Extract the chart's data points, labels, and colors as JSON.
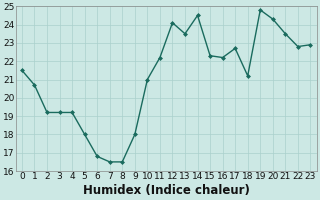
{
  "x": [
    0,
    1,
    2,
    3,
    4,
    5,
    6,
    7,
    8,
    9,
    10,
    11,
    12,
    13,
    14,
    15,
    16,
    17,
    18,
    19,
    20,
    21,
    22,
    23
  ],
  "y": [
    21.5,
    20.7,
    19.2,
    19.2,
    19.2,
    18.0,
    16.8,
    16.5,
    16.5,
    18.0,
    21.0,
    22.2,
    24.1,
    23.5,
    24.5,
    22.3,
    22.2,
    22.7,
    21.2,
    24.8,
    24.3,
    23.5,
    22.8,
    22.9
  ],
  "xlabel": "Humidex (Indice chaleur)",
  "ylim": [
    16,
    25
  ],
  "xlim": [
    -0.5,
    23.5
  ],
  "yticks": [
    16,
    17,
    18,
    19,
    20,
    21,
    22,
    23,
    24,
    25
  ],
  "xticks": [
    0,
    1,
    2,
    3,
    4,
    5,
    6,
    7,
    8,
    9,
    10,
    11,
    12,
    13,
    14,
    15,
    16,
    17,
    18,
    19,
    20,
    21,
    22,
    23
  ],
  "line_color": "#1a6b5e",
  "marker_color": "#1a6b5e",
  "bg_color": "#cce8e4",
  "grid_color": "#aad0cc",
  "font_color": "#111111",
  "tick_fontsize": 6.5,
  "xlabel_fontsize": 8.5
}
